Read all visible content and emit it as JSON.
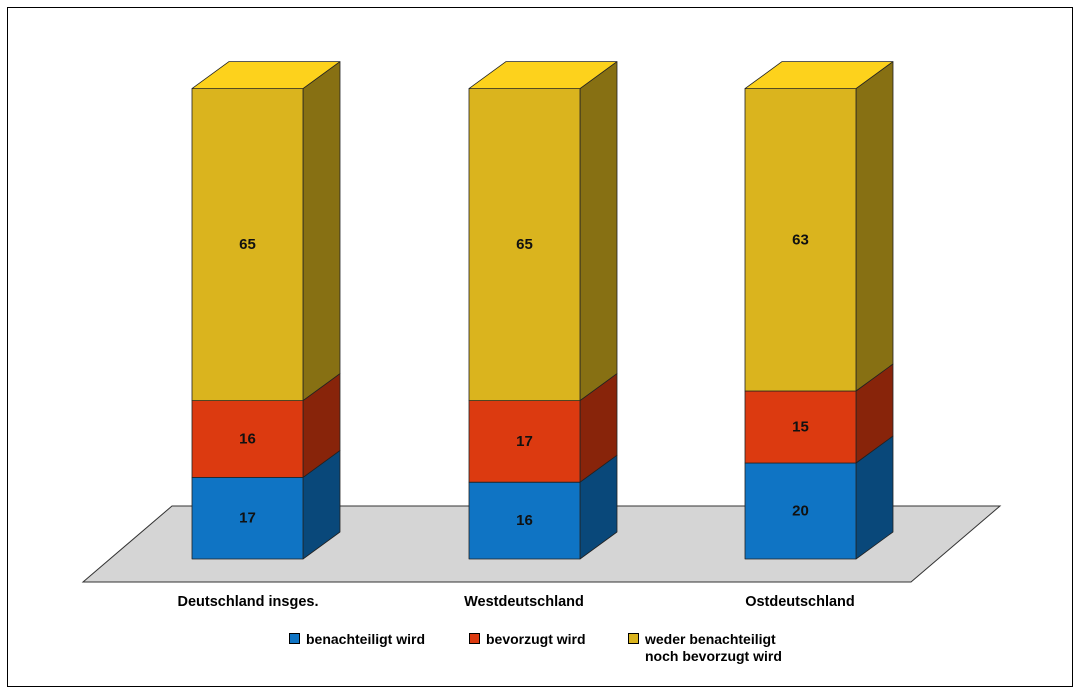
{
  "chart_data": {
    "type": "bar",
    "stacked": true,
    "three_d": true,
    "title": "",
    "xlabel": "",
    "ylabel": "",
    "ylim": [
      0,
      100
    ],
    "grid": false,
    "legend_position": "bottom",
    "categories": [
      "Deutschland insges.",
      "Westdeutschland",
      "Ostdeutschland"
    ],
    "series": [
      {
        "name": "benachteiligt wird",
        "color": "#0f74c4",
        "values": [
          17,
          16,
          20
        ]
      },
      {
        "name": "bevorzugt wird",
        "color": "#dc3a10",
        "values": [
          16,
          17,
          15
        ]
      },
      {
        "name": "weder benachteiligt noch bevorzugt wird",
        "name_lines": [
          "weder benachteiligt",
          "noch bevorzugt wird"
        ],
        "color": "#dab41e",
        "values": [
          65,
          65,
          63
        ]
      }
    ],
    "floor_color": "#d5d5d5"
  }
}
